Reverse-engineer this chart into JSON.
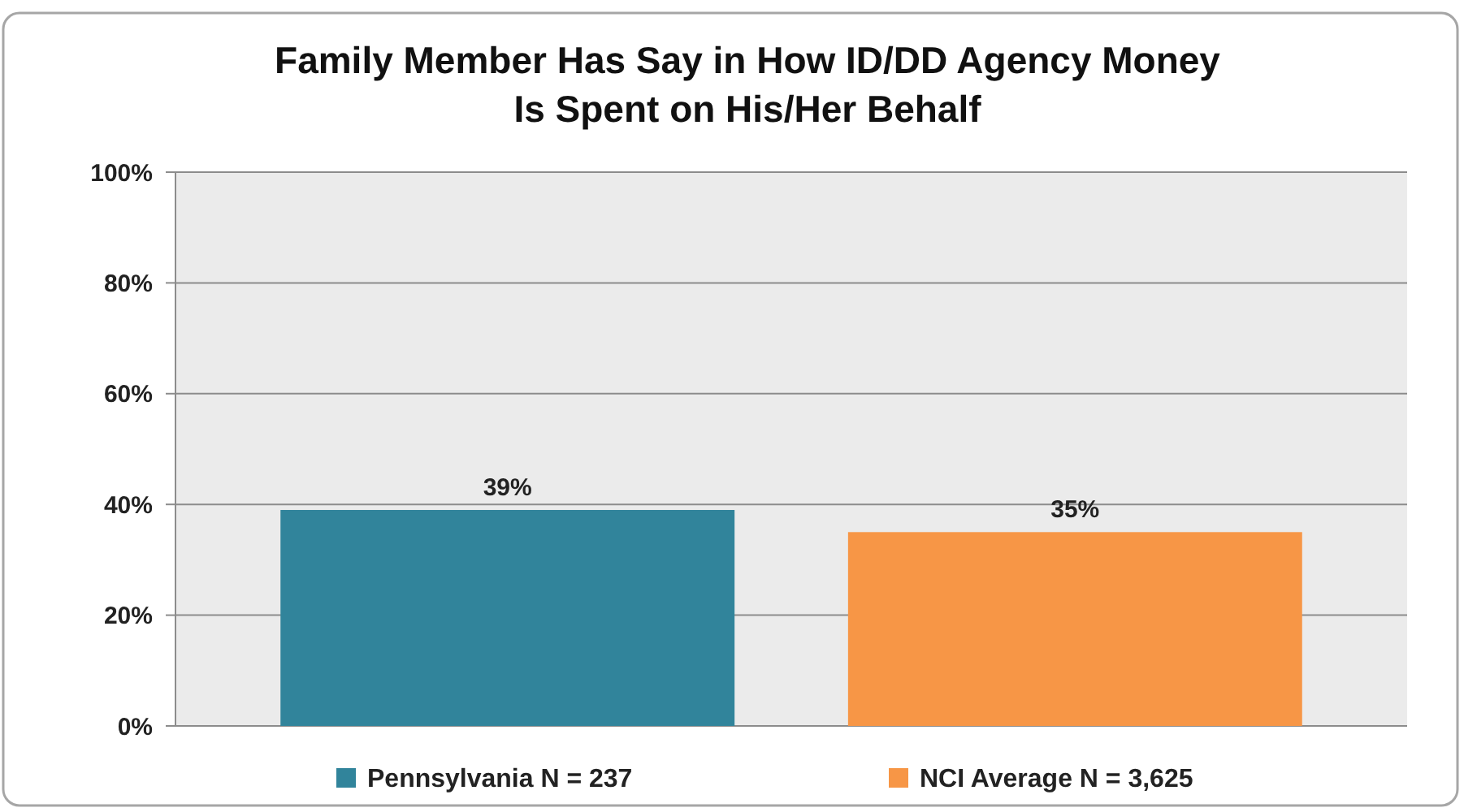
{
  "chart_data": {
    "type": "bar",
    "title": "Family Member Has Say in How ID/DD Agency Money Is Spent on His/Her Behalf",
    "categories": [
      null
    ],
    "series": [
      {
        "name": "Pennsylvania N = 237",
        "color": "#31849b",
        "values": [
          39
        ]
      },
      {
        "name": "NCI Average N = 3,625",
        "color": "#f79646",
        "values": [
          35
        ]
      }
    ],
    "ylim": [
      0,
      100
    ],
    "yticks": [
      {
        "value": 0,
        "label": "0%"
      },
      {
        "value": 20,
        "label": "20%"
      },
      {
        "value": 40,
        "label": "40%"
      },
      {
        "value": 60,
        "label": "60%"
      },
      {
        "value": 80,
        "label": "80%"
      },
      {
        "value": 100,
        "label": "100%"
      }
    ],
    "value_labels": [
      "39%",
      "35%"
    ],
    "grid": "y",
    "legend": "bottom"
  }
}
